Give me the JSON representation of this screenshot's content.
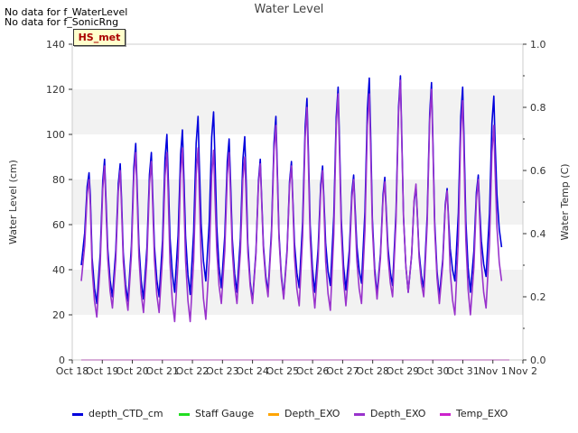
{
  "notices": [
    "No data for f_WaterLevel",
    "No data for f_SonicRng"
  ],
  "badge": "HS_met",
  "chart_data": {
    "type": "line",
    "title": "Water Level",
    "xlabel": "",
    "ylabel": "Water Level (cm)",
    "y2label": "Water Temp (C)",
    "ylim": [
      0,
      140
    ],
    "y2lim": [
      0,
      1.0
    ],
    "xlim_days": [
      0,
      15
    ],
    "yticks": [
      0,
      20,
      40,
      60,
      80,
      100,
      120,
      140
    ],
    "y2ticks": [
      0.0,
      0.2,
      0.4,
      0.6,
      0.8,
      1.0
    ],
    "xtick_labels": [
      "Oct 18",
      "Oct 19",
      "Oct 20",
      "Oct 21",
      "Oct 22",
      "Oct 23",
      "Oct 24",
      "Oct 25",
      "Oct 26",
      "Oct 27",
      "Oct 28",
      "Oct 29",
      "Oct 30",
      "Oct 31",
      "Nov 1",
      "Nov 2"
    ],
    "grid_bands": true,
    "legend_position": "bottom",
    "series": [
      {
        "name": "depth_CTD_cm",
        "color": "#0000dd",
        "axis": "left",
        "x_start": 0.3,
        "x_end": 14.55,
        "peaks": [
          83,
          89,
          87,
          96,
          92,
          100,
          102,
          108,
          110,
          98,
          99,
          89,
          108,
          88,
          116,
          86,
          121,
          82,
          125,
          81,
          126,
          77,
          123,
          76,
          121,
          82,
          117
        ],
        "troughs": [
          42,
          25,
          28,
          26,
          27,
          28,
          30,
          29,
          35,
          32,
          30,
          26,
          30,
          28,
          32,
          30,
          33,
          31,
          34,
          29,
          33,
          30,
          32,
          28,
          35,
          30,
          37,
          50
        ]
      },
      {
        "name": "Staff Gauge",
        "color": "#22dd22",
        "axis": "left"
      },
      {
        "name": "Depth_EXO",
        "color": "#ffa500",
        "axis": "left"
      },
      {
        "name": "Depth_EXO",
        "color": "#9933cc",
        "axis": "left",
        "x_start": 0.3,
        "x_end": 14.55,
        "peaks": [
          80,
          86,
          84,
          92,
          88,
          92,
          94,
          94,
          93,
          92,
          90,
          87,
          104,
          86,
          112,
          84,
          118,
          80,
          118,
          79,
          124,
          78,
          120,
          75,
          115,
          80,
          104
        ],
        "troughs": [
          35,
          19,
          23,
          22,
          21,
          21,
          17,
          17,
          18,
          25,
          25,
          25,
          28,
          27,
          24,
          23,
          22,
          24,
          25,
          27,
          28,
          30,
          28,
          25,
          20,
          20,
          23,
          35
        ]
      },
      {
        "name": "Temp_EXO",
        "color": "#cc22cc",
        "axis": "right",
        "x": [
          0.3,
          14.55
        ],
        "y": [
          0.0,
          0.0
        ]
      }
    ]
  }
}
